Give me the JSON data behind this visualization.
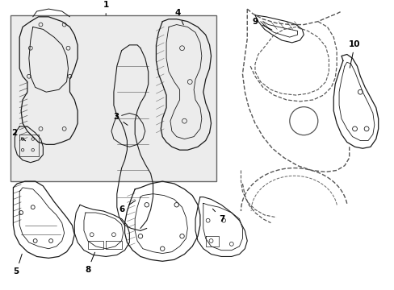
{
  "background_color": "#ffffff",
  "line_color": "#1a1a1a",
  "box_fill": "#f0f0f0",
  "figsize": [
    4.89,
    3.6
  ],
  "dpi": 100,
  "label_positions": {
    "1": [
      1.28,
      3.52,
      1.28,
      3.38
    ],
    "2": [
      0.19,
      2.55,
      0.3,
      2.47
    ],
    "3": [
      1.52,
      2.28,
      1.6,
      2.2
    ],
    "4": [
      2.18,
      3.3,
      2.18,
      3.18
    ],
    "5": [
      0.12,
      0.22,
      0.2,
      0.35
    ],
    "6": [
      1.5,
      1.12,
      1.6,
      1.22
    ],
    "7": [
      2.52,
      0.92,
      2.45,
      1.02
    ],
    "8": [
      0.95,
      0.2,
      1.0,
      0.32
    ],
    "9": [
      3.25,
      3.35,
      3.35,
      3.25
    ],
    "10": [
      4.38,
      3.1,
      4.32,
      2.98
    ]
  }
}
